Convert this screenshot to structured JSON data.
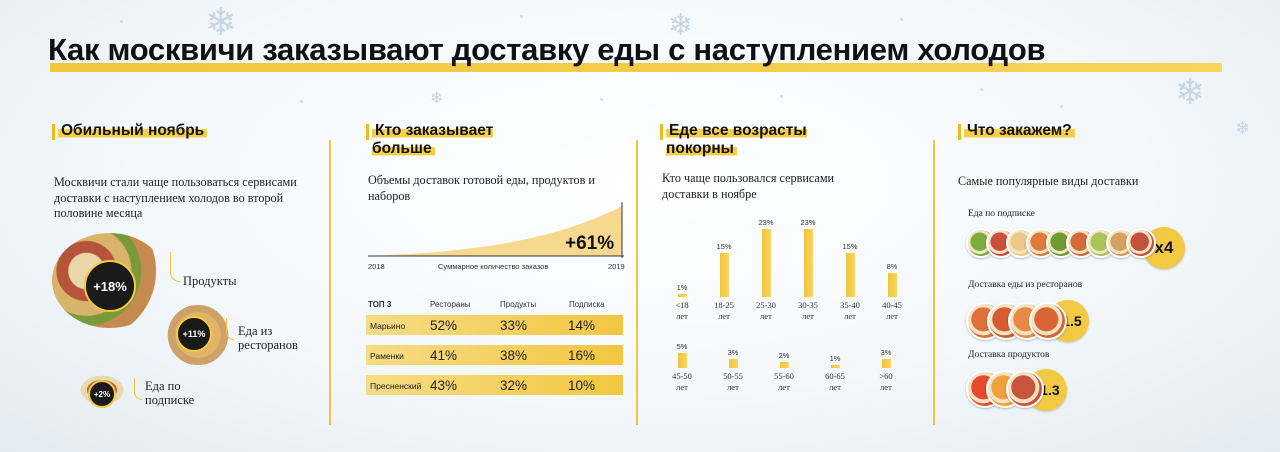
{
  "title": "Как москвичи заказывают доставку еды с наступлением холодов",
  "sections": {
    "november": {
      "heading": "Обильный ноябрь",
      "description": "Москвичи стали чаще пользоваться сервисами доставки с наступлением холодов во второй половине месяца",
      "items": [
        {
          "badge": "+18%",
          "label": "Продукты"
        },
        {
          "badge": "+11%",
          "label": "Еда из ресторанов"
        },
        {
          "badge": "+2%",
          "label": "Еда по подписке"
        }
      ]
    },
    "who": {
      "heading": "Кто заказывает больше",
      "description": "Объемы доставок готовой еды, продуктов и наборов",
      "growth": {
        "value": "+61%",
        "start_year": "2018",
        "end_year": "2019",
        "caption": "Суммарное количество заказов"
      },
      "table": {
        "headers": [
          "ТОП 3",
          "Рестораны",
          "Продукты",
          "Подписка"
        ],
        "rows": [
          {
            "name": "Марьино",
            "values": [
              "52%",
              "33%",
              "14%"
            ]
          },
          {
            "name": "Раменки",
            "values": [
              "41%",
              "38%",
              "16%"
            ]
          },
          {
            "name": "Пресненский",
            "values": [
              "43%",
              "32%",
              "10%"
            ]
          }
        ]
      }
    },
    "ages": {
      "heading": "Еде все возрасты покорны",
      "description": "Кто чаще пользовался сервисами доставки в ноябре"
    },
    "what": {
      "heading": "Что закажем?",
      "description": "Самые популярные виды доставки",
      "items": [
        {
          "label": "Еда по подписке",
          "multiplier": "x4"
        },
        {
          "label": "Доставка еды из ресторанов",
          "multiplier": "x1.5"
        },
        {
          "label": "Доставка продуктов",
          "multiplier": "x1.3"
        }
      ]
    }
  },
  "chart_data": {
    "type": "bar",
    "categories": [
      "<18 лет",
      "18-25 лет",
      "25-30 лет",
      "30-35 лет",
      "35-40 лет",
      "40-45 лет",
      "45-50 лет",
      "50-55 лет",
      "55-60 лет",
      "60-65 лет",
      ">60 лет"
    ],
    "values": [
      1,
      15,
      23,
      23,
      15,
      8,
      5,
      3,
      2,
      1,
      3
    ],
    "value_labels": [
      "1%",
      "15%",
      "23%",
      "23%",
      "15%",
      "8%",
      "5%",
      "3%",
      "2%",
      "1%",
      "3%"
    ],
    "unit": "%"
  },
  "colors": {
    "accent": "#f2c43a",
    "dark": "#1a1a1a"
  }
}
